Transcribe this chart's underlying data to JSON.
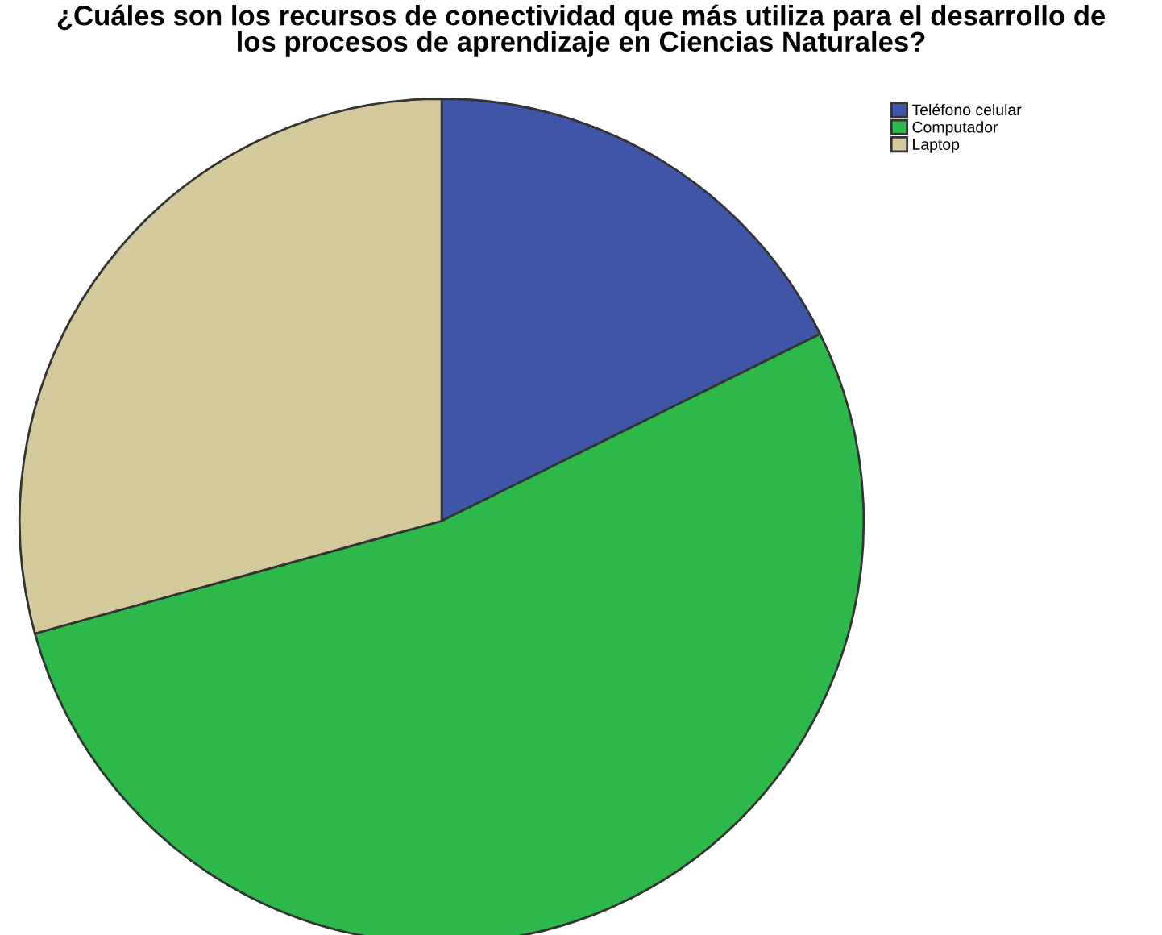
{
  "chart_data": {
    "type": "pie",
    "title": "¿Cuáles son los recursos de conectividad que más utiliza para el desarrollo de\nlos procesos de aprendizaje en Ciencias Naturales?",
    "categories": [
      "Teléfono celular",
      "Computador",
      "Laptop"
    ],
    "values": [
      17.7,
      53.0,
      29.3
    ],
    "colors": [
      "#3f55a8",
      "#2db84a",
      "#d3c99a"
    ],
    "legend": "top right"
  }
}
